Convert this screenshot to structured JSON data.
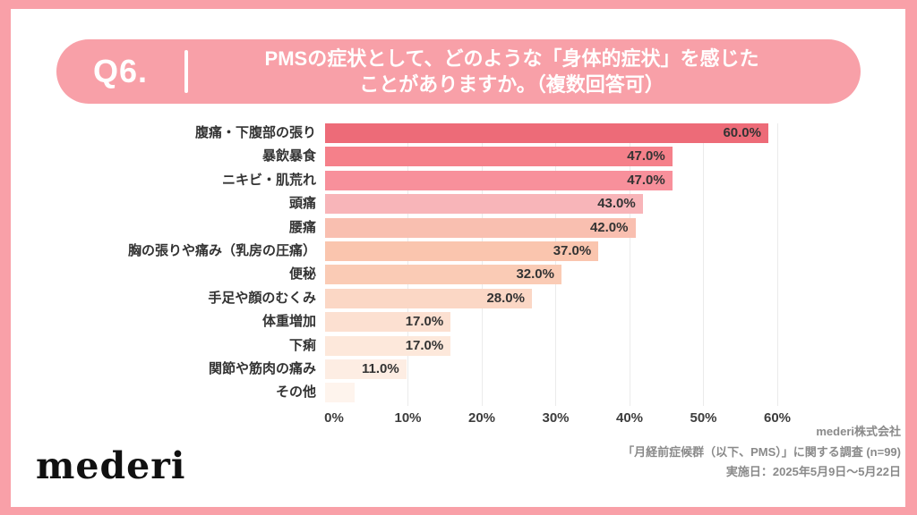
{
  "colors": {
    "frame_pink": "#F9A0A8",
    "header_bg": "#F8A0A8",
    "header_text": "#FFFFFF",
    "gridline": "#EBEBEB",
    "value_text": "#333333",
    "category_text": "#333333",
    "tick_text": "#3D3D3D",
    "credits_text": "#8A8A8A"
  },
  "header": {
    "question_number": "Q6.",
    "title_line1": "PMSの症状として、どのような「身体的症状」を感じた",
    "title_line2": "ことがありますか。（複数回答可）"
  },
  "chart_data": {
    "type": "bar",
    "orientation": "horizontal",
    "title": "",
    "xlabel": "",
    "ylabel": "",
    "xlim": [
      0,
      60
    ],
    "grid": true,
    "x_ticks": [
      {
        "value": 0,
        "label": "0%"
      },
      {
        "value": 10,
        "label": "10%"
      },
      {
        "value": 20,
        "label": "20%"
      },
      {
        "value": 30,
        "label": "30%"
      },
      {
        "value": 40,
        "label": "40%"
      },
      {
        "value": 50,
        "label": "50%"
      },
      {
        "value": 60,
        "label": "60%"
      }
    ],
    "categories": [
      "腹痛・下腹部の張り",
      "暴飲暴食",
      "ニキビ・肌荒れ",
      "頭痛",
      "腰痛",
      "胸の張りや痛み（乳房の圧痛）",
      "便秘",
      "手足や顔のむくみ",
      "体重増加",
      "下痢",
      "関節や筋肉の痛み",
      "その他"
    ],
    "values": [
      60,
      47,
      47,
      43,
      42,
      37,
      32,
      28,
      17,
      17,
      11,
      4
    ],
    "value_labels": [
      "60.0%",
      "47.0%",
      "47.0%",
      "43.0%",
      "42.0%",
      "37.0%",
      "32.0%",
      "28.0%",
      "17.0%",
      "17.0%",
      "11.0%",
      ""
    ],
    "bar_colors": [
      "#ED6B78",
      "#F5808A",
      "#F8909B",
      "#F8B5B9",
      "#F9BFB0",
      "#FAC5AE",
      "#FACBB5",
      "#FBD7C5",
      "#FCE0D1",
      "#FDE8DB",
      "#FDEDE3",
      "#FEF4ED"
    ]
  },
  "footer": {
    "logo": "mederi",
    "credits": [
      "mederi株式会社",
      "「月経前症候群（以下、PMS）」に関する調査 (n=99)",
      "実施日：2025年5月9日～5月22日"
    ]
  }
}
